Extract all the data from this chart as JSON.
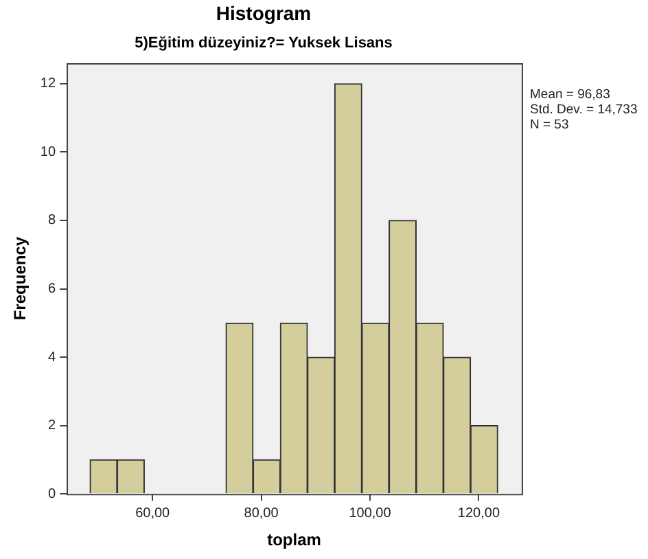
{
  "chart_data": {
    "type": "histogram",
    "title": "Histogram",
    "subtitle": "5)Eğitim düzeyiniz?= Yuksek Lisans",
    "xlabel": "toplam",
    "ylabel": "Frequency",
    "bins": [
      48.5,
      53.5,
      58.5,
      63.5,
      68.5,
      73.5,
      78.5,
      83.5,
      88.5,
      93.5,
      98.5,
      103.5,
      108.5,
      113.5,
      118.5,
      123.5
    ],
    "values": [
      1,
      1,
      0,
      0,
      0,
      5,
      1,
      5,
      4,
      12,
      5,
      8,
      5,
      4,
      2
    ],
    "color": "#d3ce9c",
    "xlim": [
      44.2,
      127.9
    ],
    "xticks": [
      {
        "value": 60,
        "label": "60,00"
      },
      {
        "value": 80,
        "label": "80,00"
      },
      {
        "value": 100,
        "label": "100,00"
      },
      {
        "value": 120,
        "label": "120,00"
      }
    ],
    "ylim": [
      0,
      12.6
    ],
    "yticks": [
      0,
      2,
      4,
      6,
      8,
      10,
      12
    ],
    "grid": false,
    "annotations": [
      "Mean = 96,83",
      "Std. Dev. = 14,733",
      "N = 53"
    ]
  }
}
